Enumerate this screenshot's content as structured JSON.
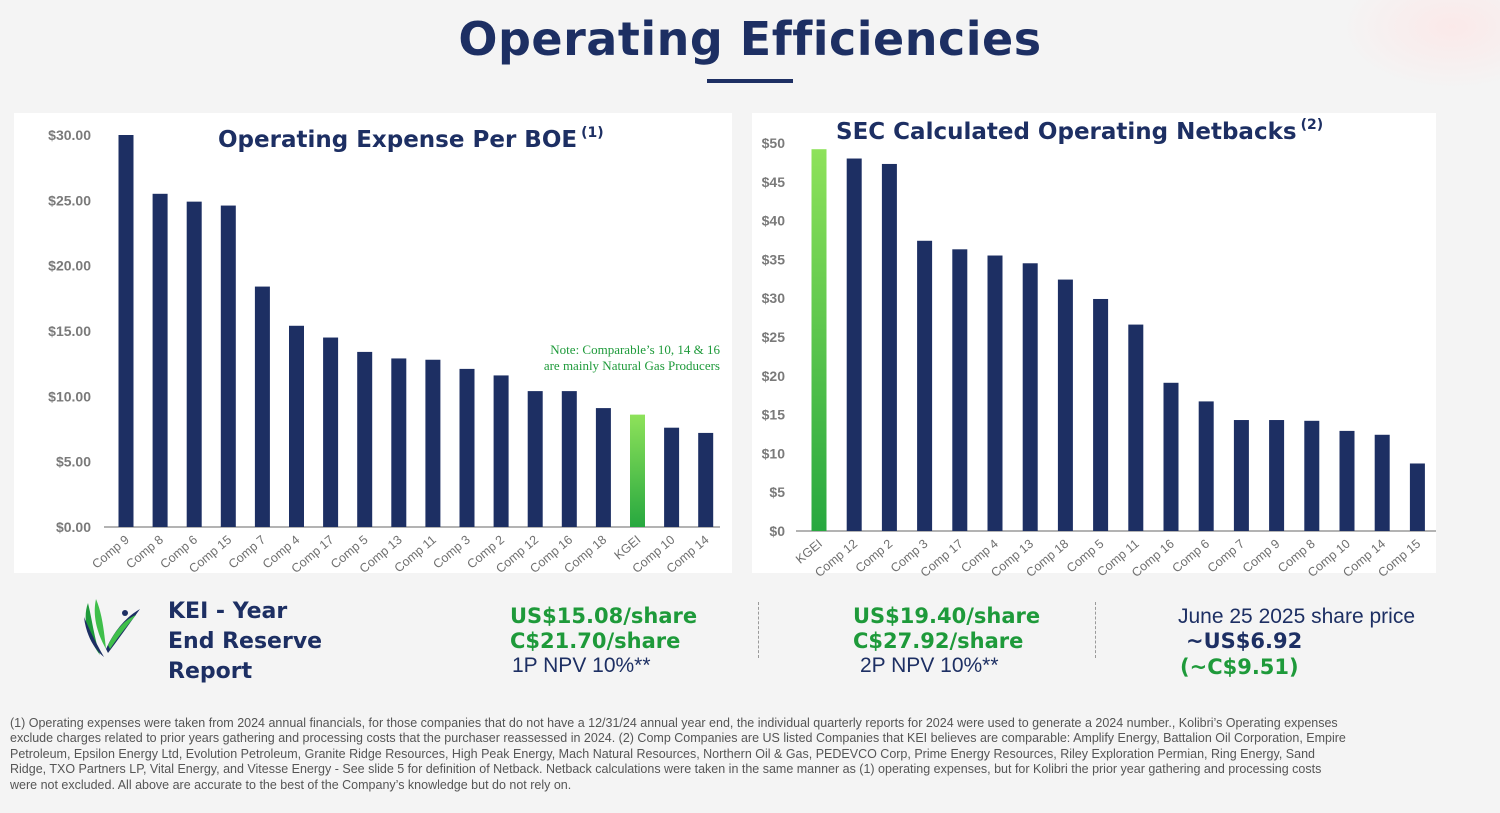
{
  "page": {
    "title": "Operating Efficiencies"
  },
  "left_note": {
    "line1": "Note: Comparable’s 10, 14 & 16",
    "line2": "are mainly Natural Gas Producers"
  },
  "reserve": {
    "title_line1": "KEI - Year",
    "title_line2": "End Reserve",
    "title_line3": "Report",
    "p1_usd": "US$15.08/share",
    "p1_cad": "C$21.70/share",
    "p1_label": "1P NPV 10%**",
    "p2_usd": "US$19.40/share",
    "p2_cad": "C$27.92/share",
    "p2_label": "2P NPV 10%**",
    "price_label": "June 25 2025 share price",
    "price_usd": "~US$6.92",
    "price_cad": "(~C$9.51)"
  },
  "footnote": "(1) Operating expenses were taken from 2024 annual financials, for those companies that do not have a 12/31/24 annual year end, the individual quarterly reports for 2024 were used to generate a 2024 number., Kolibri’s Operating expenses exclude charges related to prior years gathering and processing costs that the purchaser reassessed in 2024.  (2) Comp Companies are US listed Companies that KEI believes are comparable: Amplify Energy, Battalion Oil Corporation, Empire Petroleum, Epsilon Energy Ltd, Evolution Petroleum, Granite Ridge Resources, High Peak Energy,  Mach Natural Resources, Northern Oil & Gas, PEDEVCO Corp, Prime Energy Resources, Riley Exploration Permian, Ring Energy, Sand Ridge, TXO Partners LP, Vital Energy, and  Vitesse Energy  - See slide 5 for definition of Netback. Netback calculations were taken in the same manner as (1) operating expenses, but for Kolibri the prior year gathering and processing costs were not excluded.  All above are accurate to the best of the Company’s knowledge but do not rely on.",
  "colors": {
    "navy": "#1d2f63",
    "green": "#1e9a3a",
    "highlight_top": "#8ee25a",
    "highlight_bottom": "#27a83f"
  },
  "chart_data": [
    {
      "type": "bar",
      "title": "Operating Expense Per BOE",
      "title_sup": "(1)",
      "categories": [
        "Comp 9",
        "Comp 8",
        "Comp 6",
        "Comp 15",
        "Comp 7",
        "Comp 4",
        "Comp 17",
        "Comp 5",
        "Comp 13",
        "Comp 11",
        "Comp 3",
        "Comp 2",
        "Comp 12",
        "Comp 16",
        "Comp 18",
        "KGEI",
        "Comp 10",
        "Comp 14"
      ],
      "values": [
        30.0,
        25.5,
        24.9,
        24.6,
        18.4,
        15.4,
        14.5,
        13.4,
        12.9,
        12.8,
        12.1,
        11.6,
        10.4,
        10.4,
        9.1,
        8.6,
        7.6,
        7.2
      ],
      "highlight": "KGEI",
      "ylim": [
        0,
        30
      ],
      "yticks": [
        "$0.00",
        "$5.00",
        "$10.00",
        "$15.00",
        "$20.00",
        "$25.00",
        "$30.00"
      ],
      "xlabel": "",
      "ylabel": ""
    },
    {
      "type": "bar",
      "title": "SEC Calculated Operating Netbacks",
      "title_sup": "(2)",
      "categories": [
        "KGEI",
        "Comp 12",
        "Comp 2",
        "Comp 3",
        "Comp 17",
        "Comp 4",
        "Comp 13",
        "Comp 18",
        "Comp 5",
        "Comp 11",
        "Comp 16",
        "Comp 6",
        "Comp 7",
        "Comp 9",
        "Comp 8",
        "Comp 10",
        "Comp 14",
        "Comp 15"
      ],
      "values": [
        49.2,
        48.0,
        47.3,
        37.4,
        36.3,
        35.5,
        34.5,
        32.4,
        29.9,
        26.6,
        19.1,
        16.7,
        14.3,
        14.3,
        14.2,
        12.9,
        12.4,
        8.7
      ],
      "highlight": "KGEI",
      "ylim": [
        0,
        50
      ],
      "yticks": [
        "$0",
        "$5",
        "$10",
        "$15",
        "$20",
        "$25",
        "$30",
        "$35",
        "$40",
        "$45",
        "$50"
      ],
      "xlabel": "",
      "ylabel": ""
    }
  ]
}
